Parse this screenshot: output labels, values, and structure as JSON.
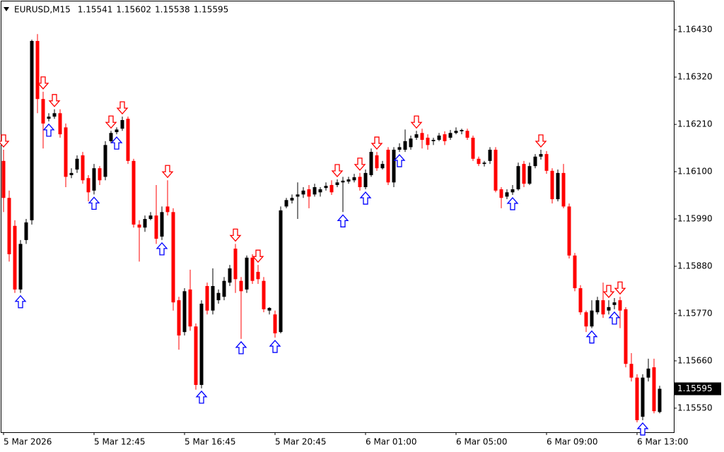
{
  "chart_data": {
    "type": "candlestick",
    "symbol": "EURUSD,M15",
    "categories": [
      "5 Mar 2026",
      null,
      null,
      null,
      null,
      null,
      null,
      null,
      null,
      null,
      null,
      null,
      null,
      null,
      null,
      null,
      "5 Mar 12:45",
      null,
      null,
      null,
      null,
      null,
      null,
      null,
      null,
      null,
      null,
      null,
      null,
      null,
      null,
      null,
      "5 Mar 16:45",
      null,
      null,
      null,
      null,
      null,
      null,
      null,
      null,
      null,
      null,
      null,
      null,
      null,
      null,
      null,
      "5 Mar 20:45",
      null,
      null,
      null,
      null,
      null,
      null,
      null,
      null,
      null,
      null,
      null,
      null,
      null,
      null,
      null,
      "6 Mar 01:00",
      null,
      null,
      null,
      null,
      null,
      null,
      null,
      null,
      null,
      null,
      null,
      null,
      null,
      null,
      null,
      "6 Mar 05:00",
      null,
      null,
      null,
      null,
      null,
      null,
      null,
      null,
      null,
      null,
      null,
      null,
      null,
      null,
      null,
      "6 Mar 09:00",
      null,
      null,
      null,
      null,
      null,
      null,
      null,
      null,
      null,
      null,
      null,
      null,
      null,
      null,
      null,
      "6 Mar 13:00",
      null,
      null,
      null,
      null
    ],
    "open": [
      1.16125,
      1.16039,
      1.15974,
      1.15826,
      1.15941,
      1.15987,
      1.16404,
      1.16269,
      1.16223,
      1.16228,
      1.16236,
      1.16203,
      1.16092,
      1.16105,
      1.16138,
      1.16085,
      1.16056,
      1.16108,
      1.16088,
      1.16171,
      1.16192,
      1.162,
      1.16223,
      1.16125,
      1.15977,
      1.1597,
      1.1599,
      1.15998,
      1.15949,
      1.16019,
      1.16006,
      1.15801,
      1.15727,
      1.15826,
      1.1574,
      1.15604,
      1.15834,
      1.15777,
      1.15801,
      1.15809,
      1.15842,
      1.15921,
      1.15846,
      1.15826,
      1.159,
      1.15867,
      1.15846,
      1.15777,
      1.15768,
      1.15727,
      1.16019,
      1.16033,
      1.16042,
      1.16047,
      1.16059,
      1.16047,
      1.16052,
      1.16062,
      1.16069,
      1.16069,
      1.16075,
      1.16077,
      1.1608,
      1.16088,
      1.16064,
      1.16092,
      1.16138,
      1.16108,
      1.16151,
      1.16075,
      1.16151,
      1.16151,
      1.16157,
      1.16179,
      1.1619,
      1.16179,
      1.16171,
      1.16174,
      1.16187,
      1.16179,
      1.1619,
      1.16194,
      1.16195,
      1.16179,
      1.1613,
      1.16118,
      1.16125,
      1.16151,
      1.16059,
      1.16042,
      1.16052,
      1.16059,
      1.16118,
      1.16072,
      1.16113,
      1.16135,
      1.16141,
      1.16102,
      1.16036,
      1.16097,
      1.16019,
      1.15905,
      1.15829,
      1.15773,
      1.1574,
      1.15773,
      1.15801,
      1.15777,
      1.1579,
      1.15801,
      1.1578,
      1.15653,
      1.15621,
      1.1553,
      1.15621,
      1.15645,
      1.15541
    ],
    "high": [
      1.16151,
      1.16056,
      1.15987,
      1.15941,
      1.1599,
      1.16407,
      1.1642,
      1.16286,
      1.16236,
      1.16245,
      1.16245,
      1.16212,
      1.16108,
      1.16138,
      1.16146,
      1.16092,
      1.16118,
      1.16113,
      1.16171,
      1.16195,
      1.16203,
      1.16228,
      1.16228,
      1.1613,
      1.15987,
      1.15998,
      1.16006,
      1.16069,
      1.16019,
      1.1608,
      1.16015,
      1.15809,
      1.15829,
      1.15872,
      1.15747,
      1.15801,
      1.15842,
      1.15875,
      1.15826,
      1.15855,
      1.15883,
      1.15932,
      1.15855,
      1.15905,
      1.15908,
      1.15883,
      1.15855,
      1.15785,
      1.15777,
      1.16019,
      1.16039,
      1.16047,
      1.16075,
      1.16064,
      1.16069,
      1.16072,
      1.16064,
      1.16075,
      1.1608,
      1.16082,
      1.16088,
      1.16088,
      1.16095,
      1.16097,
      1.16105,
      1.16154,
      1.16146,
      1.16125,
      1.16157,
      1.16157,
      1.16166,
      1.16198,
      1.16184,
      1.16195,
      1.162,
      1.16187,
      1.16179,
      1.1619,
      1.16194,
      1.16197,
      1.16203,
      1.162,
      1.162,
      1.16184,
      1.16135,
      1.16125,
      1.16157,
      1.16157,
      1.16064,
      1.16059,
      1.16069,
      1.16121,
      1.16125,
      1.16121,
      1.16141,
      1.16151,
      1.16148,
      1.16108,
      1.16105,
      1.16118,
      1.16026,
      1.15911,
      1.15836,
      1.15777,
      1.15801,
      1.15809,
      1.15842,
      1.15801,
      1.15806,
      1.15809,
      1.15785,
      1.15678,
      1.15629,
      1.15629,
      1.15665,
      1.15665,
      1.15602
    ],
    "low": [
      1.16006,
      1.15891,
      1.15818,
      1.15818,
      1.15932,
      1.15977,
      1.16236,
      1.16154,
      1.16217,
      1.16223,
      1.16179,
      1.16064,
      1.16085,
      1.16097,
      1.16072,
      1.16031,
      1.16047,
      1.16069,
      1.1608,
      1.16166,
      1.16187,
      1.16195,
      1.16118,
      1.1597,
      1.15891,
      1.1596,
      1.15987,
      1.15932,
      1.15941,
      1.15998,
      1.15777,
      1.15686,
      1.15719,
      1.1573,
      1.15593,
      1.15596,
      1.15768,
      1.15768,
      1.15793,
      1.15801,
      1.15834,
      1.15818,
      1.15711,
      1.15818,
      1.15839,
      1.15839,
      1.15773,
      1.15768,
      1.15714,
      1.15724,
      1.16015,
      1.16026,
      1.1599,
      1.16039,
      1.16015,
      1.16042,
      1.16042,
      1.16056,
      1.16046,
      1.16064,
      1.16006,
      1.16072,
      1.16075,
      1.16056,
      1.16059,
      1.16088,
      1.16102,
      1.16105,
      1.16069,
      1.16064,
      1.16146,
      1.16146,
      1.16151,
      1.16174,
      1.16154,
      1.16151,
      1.16162,
      1.16171,
      1.16162,
      1.16174,
      1.16187,
      1.16187,
      1.16174,
      1.16125,
      1.16113,
      1.16112,
      1.16118,
      1.16052,
      1.16015,
      1.16036,
      1.16046,
      1.16056,
      1.16064,
      1.16069,
      1.16108,
      1.16128,
      1.16095,
      1.16026,
      1.16031,
      1.16015,
      1.15898,
      1.15822,
      1.15767,
      1.15727,
      1.15736,
      1.15768,
      1.1576,
      1.15768,
      1.1578,
      1.15736,
      1.15645,
      1.15612,
      1.15517,
      1.15522,
      1.15612,
      1.15538,
      1.15538
    ],
    "close": [
      1.16039,
      1.15908,
      1.15826,
      1.15932,
      1.15982,
      1.16404,
      1.16269,
      1.16212,
      1.16228,
      1.16236,
      1.16187,
      1.16088,
      1.16097,
      1.1613,
      1.1608,
      1.16052,
      1.16108,
      1.1608,
      1.16162,
      1.1619,
      1.16198,
      1.1622,
      1.16125,
      1.15977,
      1.1597,
      1.1599,
      1.15998,
      1.15944,
      1.16006,
      1.16006,
      1.15796,
      1.15719,
      1.15822,
      1.1574,
      1.15604,
      1.15793,
      1.15777,
      1.15834,
      1.15818,
      1.15846,
      1.15875,
      1.1585,
      1.15822,
      1.159,
      1.15846,
      1.1585,
      1.1578,
      1.15783,
      1.15724,
      1.1601,
      1.16034,
      1.16039,
      1.16047,
      1.16056,
      1.16042,
      1.16064,
      1.16059,
      1.16067,
      1.16052,
      1.16075,
      1.16079,
      1.16082,
      1.16087,
      1.16064,
      1.16097,
      1.16146,
      1.16108,
      1.16118,
      1.16075,
      1.16151,
      1.16157,
      1.16171,
      1.16177,
      1.16187,
      1.16174,
      1.16162,
      1.16174,
      1.16184,
      1.16171,
      1.1619,
      1.16195,
      1.16197,
      1.16179,
      1.1613,
      1.16118,
      1.16121,
      1.16151,
      1.16056,
      1.16039,
      1.16052,
      1.16059,
      1.16113,
      1.16072,
      1.16113,
      1.16135,
      1.16141,
      1.16102,
      1.16036,
      1.16097,
      1.16019,
      1.15905,
      1.15829,
      1.15773,
      1.1574,
      1.15777,
      1.15801,
      1.15768,
      1.15785,
      1.15796,
      1.15777,
      1.15653,
      1.15621,
      1.15522,
      1.15621,
      1.15642,
      1.15543,
      1.15595
    ],
    "sell_signals": [
      0,
      7,
      9,
      19,
      21,
      29,
      41,
      45,
      59,
      63,
      66,
      73,
      95,
      107,
      109
    ],
    "buy_signals": [
      3,
      8,
      16,
      20,
      28,
      35,
      42,
      48,
      60,
      64,
      70,
      90,
      104,
      108,
      113
    ],
    "bull_color": "#000000",
    "bear_color": "#ff0000",
    "buy_color": "#0000ff",
    "sell_color": "#ff0000",
    "ylim": [
      1.15494,
      1.16496
    ],
    "yticks": [
      {
        "value": 1.1643,
        "label": "1.16430"
      },
      {
        "value": 1.1632,
        "label": "1.16320"
      },
      {
        "value": 1.1621,
        "label": "1.16210"
      },
      {
        "value": 1.161,
        "label": "1.16100"
      },
      {
        "value": 1.1599,
        "label": "1.15990"
      },
      {
        "value": 1.1588,
        "label": "1.15880"
      },
      {
        "value": 1.1577,
        "label": "1.15770"
      },
      {
        "value": 1.1566,
        "label": "1.15660"
      },
      {
        "value": 1.1555,
        "label": "1.15550"
      }
    ],
    "grid": false
  }
}
